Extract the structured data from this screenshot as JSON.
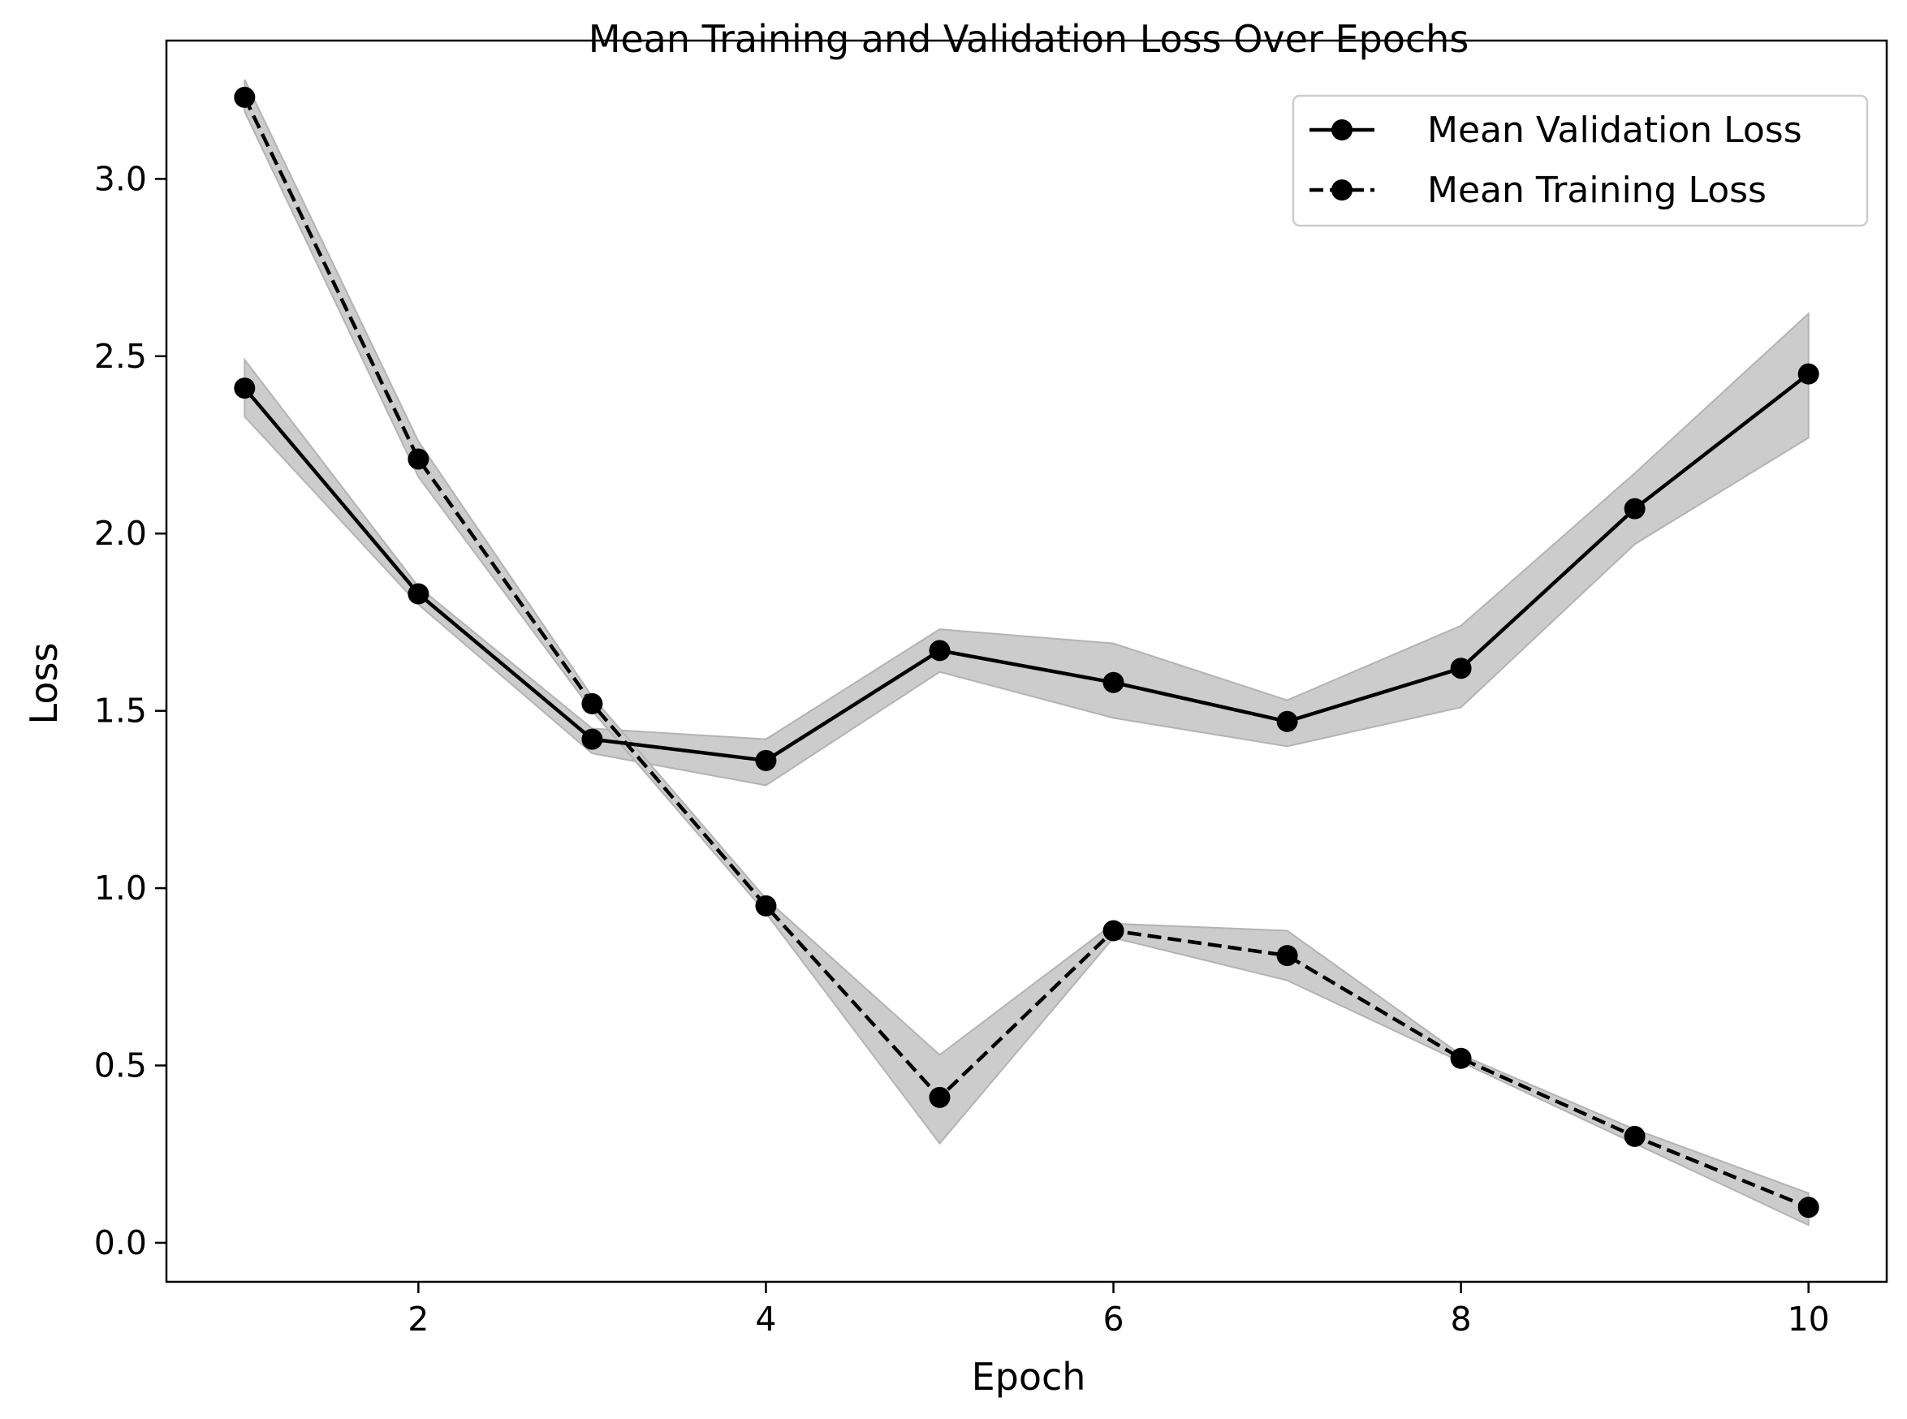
{
  "chart_data": {
    "type": "line",
    "title": "Mean Training and Validation Loss Over Epochs",
    "xlabel": "Epoch",
    "ylabel": "Loss",
    "x": [
      1,
      2,
      3,
      4,
      5,
      6,
      7,
      8,
      9,
      10
    ],
    "xlim": [
      0.55,
      10.45
    ],
    "ylim": [
      -0.11,
      3.39
    ],
    "xticks": [
      2,
      4,
      6,
      8,
      10
    ],
    "xtick_labels": [
      "2",
      "4",
      "6",
      "8",
      "10"
    ],
    "yticks": [
      0.0,
      0.5,
      1.0,
      1.5,
      2.0,
      2.5,
      3.0
    ],
    "ytick_labels": [
      "0.0",
      "0.5",
      "1.0",
      "1.5",
      "2.0",
      "2.5",
      "3.0"
    ],
    "grid": false,
    "legend_position": "top-right",
    "series": [
      {
        "name": "Mean Validation Loss",
        "line_style": "solid",
        "marker": "circle",
        "color": "#000000",
        "values": [
          2.41,
          1.83,
          1.42,
          1.36,
          1.67,
          1.58,
          1.47,
          1.62,
          2.07,
          2.45
        ],
        "band_lower": [
          2.33,
          1.8,
          1.38,
          1.29,
          1.61,
          1.48,
          1.4,
          1.51,
          1.97,
          2.27
        ],
        "band_upper": [
          2.49,
          1.85,
          1.45,
          1.42,
          1.73,
          1.69,
          1.53,
          1.74,
          2.17,
          2.62
        ]
      },
      {
        "name": "Mean Training Loss",
        "line_style": "dashed",
        "marker": "circle",
        "color": "#000000",
        "values": [
          3.23,
          2.21,
          1.52,
          0.95,
          0.41,
          0.88,
          0.81,
          0.52,
          0.3,
          0.1
        ],
        "band_lower": [
          3.19,
          2.16,
          1.5,
          0.93,
          0.28,
          0.86,
          0.74,
          0.51,
          0.28,
          0.05
        ],
        "band_upper": [
          3.28,
          2.26,
          1.54,
          0.97,
          0.53,
          0.9,
          0.88,
          0.53,
          0.32,
          0.14
        ]
      }
    ],
    "band_color": "#cccccc"
  }
}
